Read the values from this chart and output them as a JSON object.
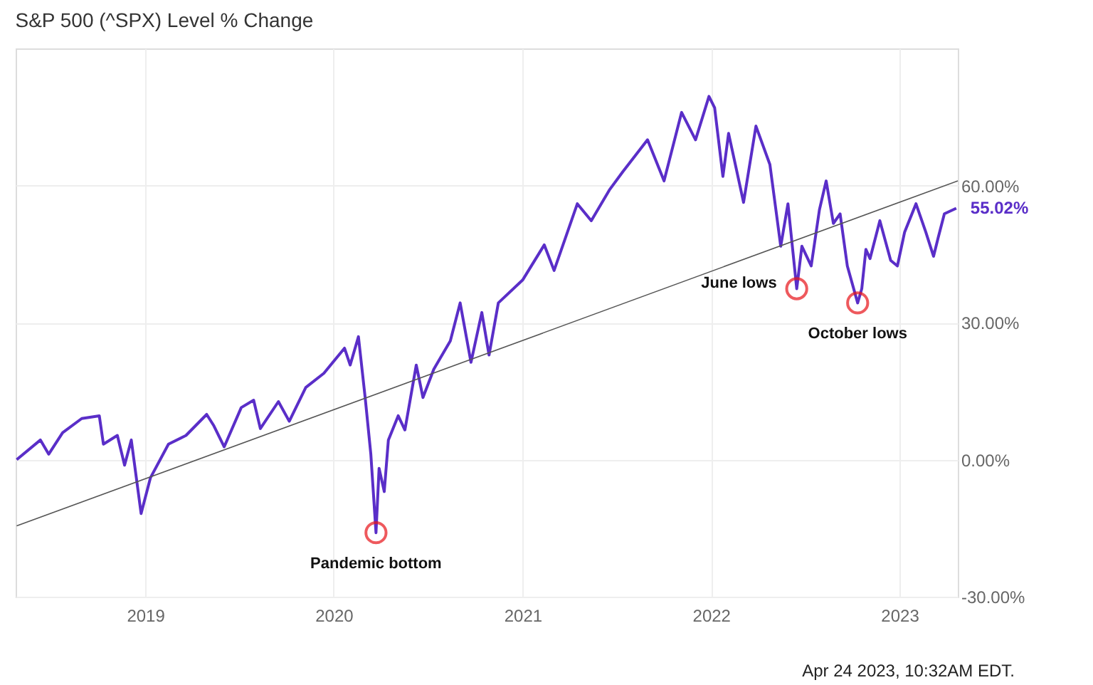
{
  "chart_data": {
    "type": "line",
    "title": "S&P 500 (^SPX) Level % Change",
    "xlim": [
      "2018-04-25",
      "2023-04-24"
    ],
    "xticks": [
      {
        "value": "2019-01-01",
        "label": "2019"
      },
      {
        "value": "2020-01-01",
        "label": "2020"
      },
      {
        "value": "2021-01-01",
        "label": "2021"
      },
      {
        "value": "2022-01-01",
        "label": "2022"
      },
      {
        "value": "2023-01-01",
        "label": "2023"
      }
    ],
    "ylim": [
      -30,
      90
    ],
    "yticks": [
      {
        "value": -30,
        "label": "-30.00%"
      },
      {
        "value": 0,
        "label": "0.00%"
      },
      {
        "value": 30,
        "label": "30.00%"
      },
      {
        "value": 60,
        "label": "60.00%"
      }
    ],
    "grid": true,
    "marker": "none",
    "line_style": "solid",
    "series": [
      {
        "color": "#5a2ec8",
        "x": [
          "2018-04-27",
          "2018-06-12",
          "2018-06-28",
          "2018-07-25",
          "2018-08-31",
          "2018-10-04",
          "2018-10-12",
          "2018-11-08",
          "2018-11-22",
          "2018-12-05",
          "2018-12-24",
          "2019-01-11",
          "2019-02-15",
          "2019-03-21",
          "2019-04-30",
          "2019-05-14",
          "2019-06-03",
          "2019-07-06",
          "2019-07-30",
          "2019-08-12",
          "2019-09-16",
          "2019-10-07",
          "2019-11-08",
          "2019-12-13",
          "2020-01-22",
          "2020-02-02",
          "2020-02-18",
          "2020-03-02",
          "2020-03-13",
          "2020-03-23",
          "2020-03-29",
          "2020-04-08",
          "2020-04-16",
          "2020-05-05",
          "2020-05-18",
          "2020-06-09",
          "2020-06-22",
          "2020-07-13",
          "2020-08-14",
          "2020-09-02",
          "2020-09-23",
          "2020-10-14",
          "2020-10-28",
          "2020-11-15",
          "2021-01-01",
          "2021-02-12",
          "2021-03-03",
          "2021-04-17",
          "2021-05-14",
          "2021-06-18",
          "2021-07-14",
          "2021-08-31",
          "2021-10-02",
          "2021-11-05",
          "2021-12-02",
          "2021-12-28",
          "2022-01-08",
          "2022-01-24",
          "2022-02-04",
          "2022-03-05",
          "2022-03-29",
          "2022-04-25",
          "2022-05-16",
          "2022-05-30",
          "2022-06-16",
          "2022-06-26",
          "2022-07-14",
          "2022-07-30",
          "2022-08-12",
          "2022-08-26",
          "2022-09-08",
          "2022-09-22",
          "2022-10-12",
          "2022-10-20",
          "2022-10-28",
          "2022-11-05",
          "2022-11-24",
          "2022-12-15",
          "2022-12-28",
          "2023-01-11",
          "2023-02-02",
          "2023-02-21",
          "2023-03-08",
          "2023-03-17",
          "2023-03-29",
          "2023-04-21"
        ],
        "values": [
          0,
          4.3,
          1.2,
          5.9,
          9,
          9.6,
          3.4,
          5.3,
          -1.2,
          4.3,
          -11.8,
          -4,
          3.4,
          5.3,
          9.9,
          7.4,
          2.8,
          11.4,
          13,
          6.8,
          12.7,
          8.4,
          15.8,
          18.9,
          24.4,
          20.7,
          26.9,
          13.6,
          1.2,
          -16,
          -1.9,
          -7,
          4.3,
          9.6,
          6.5,
          20.7,
          13.6,
          19.8,
          26,
          34.3,
          21.3,
          32.2,
          22.9,
          34.3,
          39.3,
          47,
          41.4,
          56,
          52.3,
          59,
          63,
          70,
          61,
          76,
          70,
          79.5,
          77,
          62,
          71.4,
          56.3,
          73,
          64.6,
          46.7,
          56,
          37.4,
          46.7,
          42.4,
          54.7,
          61,
          51.7,
          53.8,
          42.4,
          34.3,
          37.4,
          46,
          44,
          52.3,
          43.6,
          42.4,
          49.8,
          56,
          49.8,
          44.5,
          48.6,
          53.8,
          55.02
        ],
        "value_labels": [
          null,
          null,
          null,
          null,
          null,
          null,
          null,
          null,
          null,
          null,
          null,
          null,
          null,
          null,
          null,
          null,
          null,
          null,
          null,
          null,
          null,
          null,
          null,
          null,
          null,
          null,
          null,
          null,
          null,
          null,
          null,
          null,
          null,
          null,
          null,
          null,
          null,
          null,
          null,
          null,
          null,
          null,
          null,
          null,
          null,
          null,
          null,
          null,
          null,
          null,
          null,
          null,
          null,
          null,
          null,
          null,
          null,
          null,
          null,
          null,
          null,
          null,
          null,
          null,
          null,
          null,
          null,
          null,
          null,
          null,
          null,
          null,
          null,
          null,
          null,
          null,
          null,
          null,
          null,
          null,
          null,
          null,
          null,
          null,
          null,
          "55.02%"
        ]
      },
      {
        "color": "#555555",
        "x": [
          "2018-04-27",
          "2023-04-24"
        ],
        "values": [
          -14.5,
          61
        ]
      }
    ],
    "annotations": [
      {
        "text": "Pandemic bottom",
        "x": "2020-03-23",
        "y": -16
      },
      {
        "text": "June lows",
        "x": "2022-06-16",
        "y": 37.4
      },
      {
        "text": "October lows",
        "x": "2022-10-12",
        "y": 34.3
      },
      "Apr 24 2023, 10:32AM EDT."
    ]
  }
}
